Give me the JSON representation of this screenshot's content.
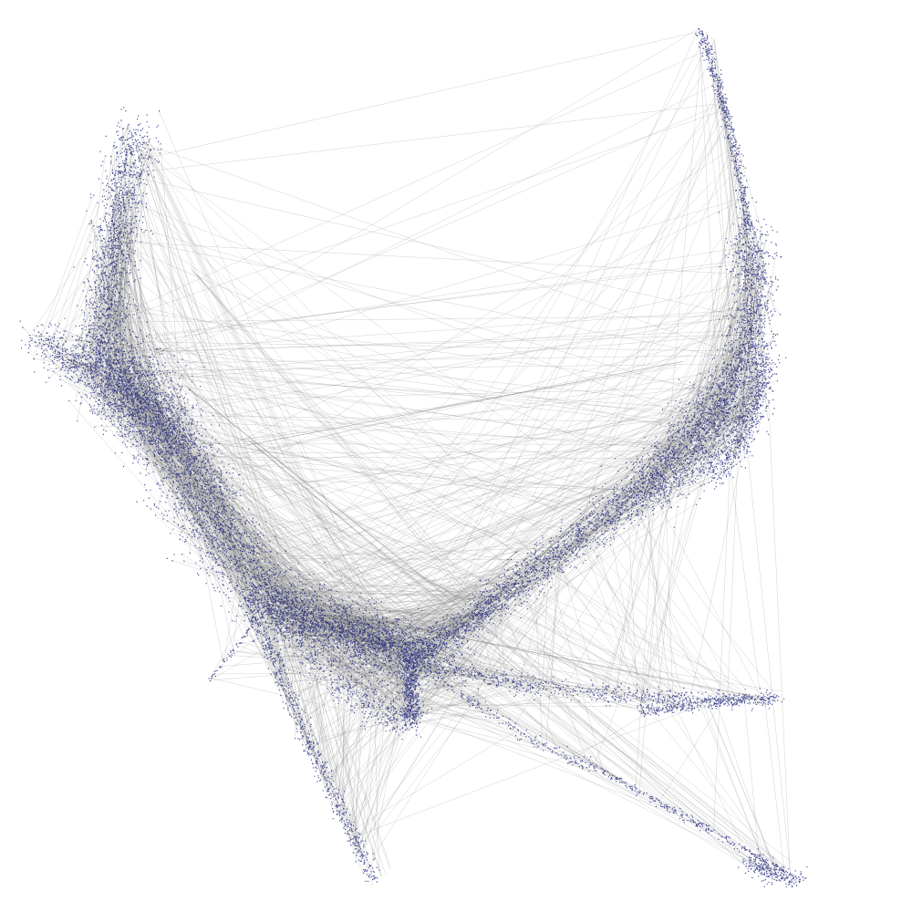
{
  "graph": {
    "layout": "force-directed",
    "labels_shown": false,
    "node_color": "#141b78",
    "edge_color": "#8a8a8a",
    "background": "#ffffff",
    "clusters": [
      {
        "name": "upper-left-lobe",
        "density": "very-high"
      },
      {
        "name": "central-hub",
        "density": "very-high"
      },
      {
        "name": "right-arm",
        "density": "high"
      },
      {
        "name": "right-tip",
        "density": "medium"
      },
      {
        "name": "lower-right-tail",
        "density": "medium"
      },
      {
        "name": "lower-right-spur",
        "density": "low"
      },
      {
        "name": "bottom-left-spur",
        "density": "medium"
      }
    ]
  }
}
